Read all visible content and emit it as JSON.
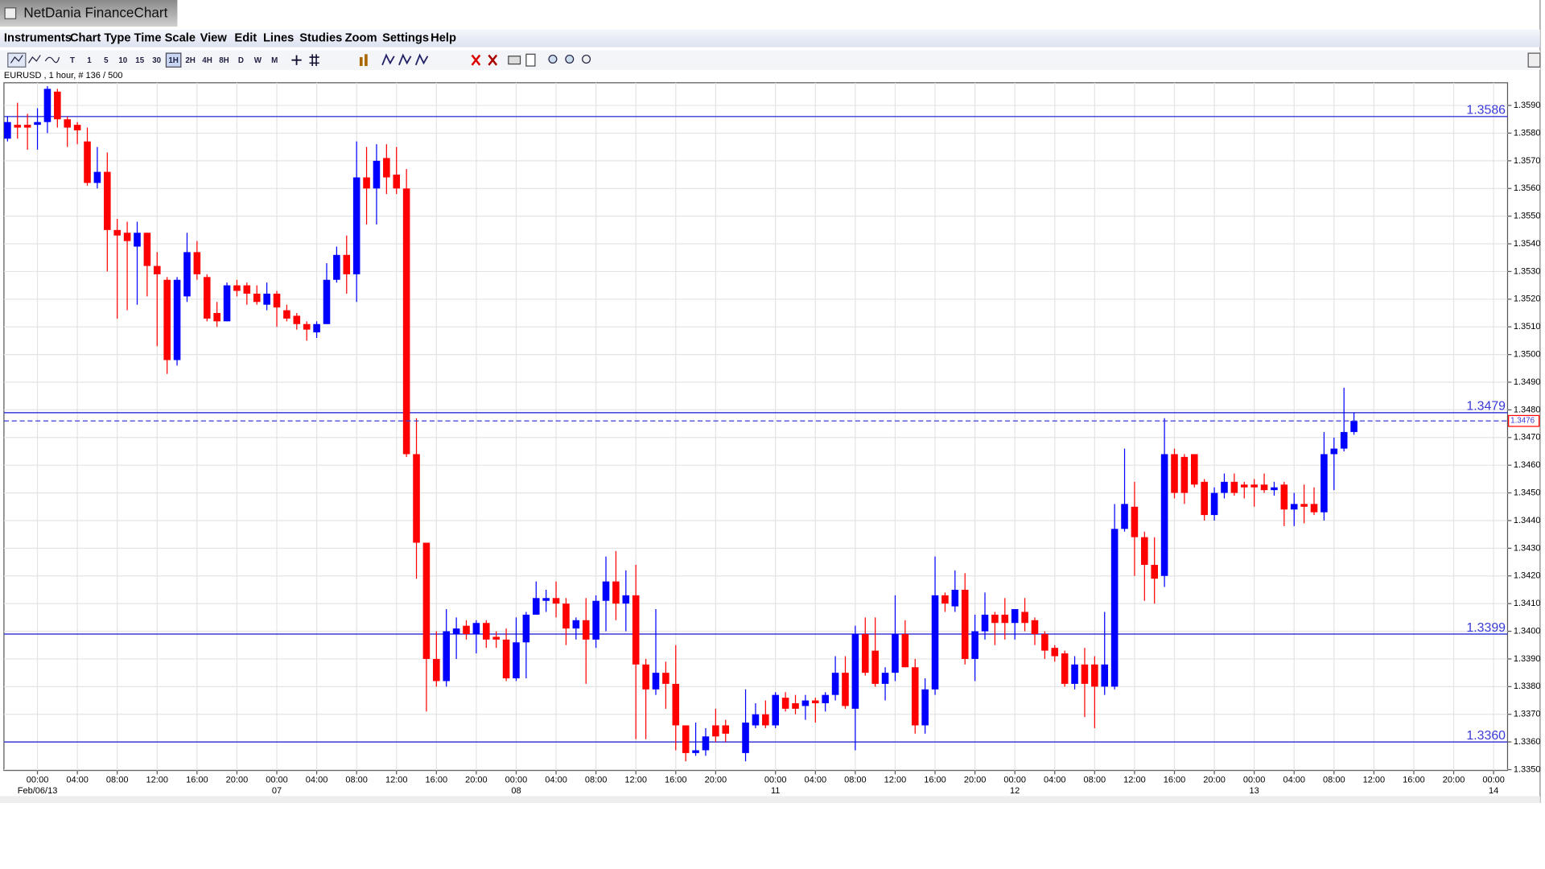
{
  "window_title": "NetDania FinanceChart",
  "menu": [
    "Instruments",
    "Chart Type",
    "Time Scale",
    "View",
    "Edit",
    "Lines",
    "Studies",
    "Zoom",
    "Settings",
    "Help"
  ],
  "toolbar_timeframes": [
    "T",
    "1",
    "5",
    "10",
    "15",
    "30",
    "1H",
    "2H",
    "4H",
    "8H",
    "D",
    "W",
    "M"
  ],
  "active_timeframe": "1H",
  "chart_data": {
    "type": "candlestick",
    "title": "EURUSD , 1 hour, # 136 / 500",
    "up_color": "#0000ff",
    "down_color": "#ff0000",
    "level_color": "#3a3ad8",
    "grid": true,
    "xlim": [
      -3.36,
      147.4
    ],
    "ylim": [
      1.33497,
      1.35982
    ],
    "xticks": [
      {
        "value": 0,
        "label": "00:00"
      },
      {
        "value": 4,
        "label": "04:00"
      },
      {
        "value": 8,
        "label": "08:00"
      },
      {
        "value": 12,
        "label": "12:00"
      },
      {
        "value": 16,
        "label": "16:00"
      },
      {
        "value": 20,
        "label": "20:00"
      },
      {
        "value": 24,
        "label": "00:00"
      },
      {
        "value": 28,
        "label": "04:00"
      },
      {
        "value": 32,
        "label": "08:00"
      },
      {
        "value": 36,
        "label": "12:00"
      },
      {
        "value": 40,
        "label": "16:00"
      },
      {
        "value": 44,
        "label": "20:00"
      },
      {
        "value": 48,
        "label": "00:00"
      },
      {
        "value": 52,
        "label": "04:00"
      },
      {
        "value": 56,
        "label": "08:00"
      },
      {
        "value": 60,
        "label": "12:00"
      },
      {
        "value": 64,
        "label": "16:00"
      },
      {
        "value": 68,
        "label": "20:00"
      },
      {
        "value": 74,
        "label": "00:00"
      },
      {
        "value": 78,
        "label": "04:00"
      },
      {
        "value": 82,
        "label": "08:00"
      },
      {
        "value": 86,
        "label": "12:00"
      },
      {
        "value": 90,
        "label": "16:00"
      },
      {
        "value": 94,
        "label": "20:00"
      },
      {
        "value": 98,
        "label": "00:00"
      },
      {
        "value": 102,
        "label": "04:00"
      },
      {
        "value": 106,
        "label": "08:00"
      },
      {
        "value": 110,
        "label": "12:00"
      },
      {
        "value": 114,
        "label": "16:00"
      },
      {
        "value": 118,
        "label": "20:00"
      },
      {
        "value": 122,
        "label": "00:00"
      },
      {
        "value": 126,
        "label": "04:00"
      },
      {
        "value": 130,
        "label": "08:00"
      },
      {
        "value": 134,
        "label": "12:00"
      },
      {
        "value": 138,
        "label": "16:00"
      },
      {
        "value": 142,
        "label": "20:00"
      },
      {
        "value": 146,
        "label": "00:00"
      }
    ],
    "date_labels": [
      {
        "value": 0,
        "label": "Feb/06/13"
      },
      {
        "value": 24,
        "label": "07"
      },
      {
        "value": 48,
        "label": "08"
      },
      {
        "value": 74,
        "label": "11"
      },
      {
        "value": 98,
        "label": "12"
      },
      {
        "value": 122,
        "label": "13"
      },
      {
        "value": 146,
        "label": "14"
      }
    ],
    "yticks": [
      {
        "value": 1.335,
        "label": "1.3350"
      },
      {
        "value": 1.336,
        "label": "1.3360"
      },
      {
        "value": 1.337,
        "label": "1.3370"
      },
      {
        "value": 1.338,
        "label": "1.3380"
      },
      {
        "value": 1.339,
        "label": "1.3390"
      },
      {
        "value": 1.34,
        "label": "1.3400"
      },
      {
        "value": 1.341,
        "label": "1.3410"
      },
      {
        "value": 1.342,
        "label": "1.3420"
      },
      {
        "value": 1.343,
        "label": "1.3430"
      },
      {
        "value": 1.344,
        "label": "1.3440"
      },
      {
        "value": 1.345,
        "label": "1.3450"
      },
      {
        "value": 1.346,
        "label": "1.3460"
      },
      {
        "value": 1.347,
        "label": "1.3470"
      },
      {
        "value": 1.348,
        "label": "1.3480"
      },
      {
        "value": 1.349,
        "label": "1.3490"
      },
      {
        "value": 1.35,
        "label": "1.3500"
      },
      {
        "value": 1.351,
        "label": "1.3510"
      },
      {
        "value": 1.352,
        "label": "1.3520"
      },
      {
        "value": 1.353,
        "label": "1.3530"
      },
      {
        "value": 1.354,
        "label": "1.3540"
      },
      {
        "value": 1.355,
        "label": "1.3550"
      },
      {
        "value": 1.356,
        "label": "1.3560"
      },
      {
        "value": 1.357,
        "label": "1.3570"
      },
      {
        "value": 1.358,
        "label": "1.3580"
      },
      {
        "value": 1.359,
        "label": "1.3590"
      }
    ],
    "levels": [
      1.3586,
      1.3479,
      1.3399,
      {
        "value": 1.336,
        "label": "1.3360"
      }
    ],
    "last": 1.3476,
    "x": [
      -3,
      -2,
      -1,
      0,
      1,
      2,
      3,
      4,
      5,
      6,
      7,
      8,
      9,
      10,
      11,
      12,
      13,
      14,
      15,
      16,
      17,
      18,
      19,
      20,
      21,
      22,
      23,
      24,
      25,
      26,
      27,
      28,
      29,
      30,
      31,
      32,
      33,
      34,
      35,
      36,
      37,
      38,
      39,
      40,
      41,
      42,
      43,
      44,
      45,
      46,
      47,
      48,
      49,
      50,
      51,
      52,
      53,
      54,
      55,
      56,
      57,
      58,
      59,
      60,
      61,
      62,
      63,
      64,
      65,
      66,
      67,
      68,
      69,
      71,
      72,
      73,
      74,
      75,
      76,
      77,
      78,
      79,
      80,
      81,
      82,
      83,
      84,
      85,
      86,
      87,
      88,
      89,
      90,
      91,
      92,
      93,
      94,
      95,
      96,
      97,
      98,
      99,
      100,
      101,
      102,
      103,
      104,
      105,
      106,
      107,
      108,
      109,
      110,
      111,
      112,
      113,
      114,
      115,
      116,
      117,
      118,
      119,
      120,
      121,
      122,
      123,
      124,
      125,
      126,
      127,
      128,
      129,
      130,
      131,
      132
    ],
    "open": [
      1.3578,
      1.3583,
      1.3583,
      1.3583,
      1.3584,
      1.3595,
      1.3585,
      1.3583,
      1.3577,
      1.3562,
      1.3566,
      1.3545,
      1.3544,
      1.3539,
      1.3544,
      1.3532,
      1.3527,
      1.3498,
      1.3521,
      1.3537,
      1.3528,
      1.3515,
      1.3512,
      1.3525,
      1.3525,
      1.3522,
      1.3518,
      1.3522,
      1.3516,
      1.3514,
      1.3511,
      1.3508,
      1.3511,
      1.3527,
      1.3536,
      1.3529,
      1.3564,
      1.356,
      1.3571,
      1.3565,
      1.356,
      1.3464,
      1.3432,
      1.339,
      1.3382,
      1.3399,
      1.3402,
      1.3399,
      1.3403,
      1.3398,
      1.3397,
      1.3383,
      1.3396,
      1.3406,
      1.3411,
      1.3412,
      1.341,
      1.3401,
      1.3404,
      1.3397,
      1.3411,
      1.3418,
      1.341,
      1.3413,
      1.3388,
      1.3379,
      1.3385,
      1.3381,
      1.3366,
      1.3356,
      1.3357,
      1.3366,
      1.3366,
      1.3356,
      1.3366,
      1.337,
      1.3366,
      1.3376,
      1.3374,
      1.3373,
      1.3375,
      1.3374,
      1.3377,
      1.3385,
      1.3372,
      1.3399,
      1.3393,
      1.3381,
      1.3385,
      1.3399,
      1.3387,
      1.3366,
      1.3379,
      1.3413,
      1.3409,
      1.3415,
      1.339,
      1.34,
      1.3406,
      1.3406,
      1.3403,
      1.3407,
      1.3404,
      1.3399,
      1.3394,
      1.3392,
      1.3381,
      1.3388,
      1.3388,
      1.338,
      1.338,
      1.3437,
      1.3445,
      1.3434,
      1.3424,
      1.342,
      1.3464,
      1.3463,
      1.3464,
      1.3454,
      1.3442,
      1.345,
      1.3454,
      1.3453,
      1.3453,
      1.3453,
      1.3451,
      1.3453,
      1.3444,
      1.3446,
      1.3446,
      1.3443,
      1.3464,
      1.3466,
      1.3472
    ],
    "high": [
      1.3586,
      1.3591,
      1.3587,
      1.3589,
      1.3597,
      1.3596,
      1.3586,
      1.3584,
      1.3582,
      1.3575,
      1.3573,
      1.3549,
      1.3548,
      1.3548,
      1.3544,
      1.3537,
      1.3528,
      1.3528,
      1.3544,
      1.3541,
      1.3529,
      1.3519,
      1.3526,
      1.3527,
      1.3526,
      1.3525,
      1.3526,
      1.3523,
      1.3518,
      1.3515,
      1.3512,
      1.3512,
      1.3533,
      1.3539,
      1.3543,
      1.3577,
      1.3575,
      1.3576,
      1.3576,
      1.3575,
      1.3567,
      1.3477,
      1.3432,
      1.34,
      1.3408,
      1.3405,
      1.3404,
      1.3404,
      1.3404,
      1.34,
      1.3401,
      1.3405,
      1.3407,
      1.3418,
      1.3415,
      1.3418,
      1.3412,
      1.3405,
      1.3412,
      1.3413,
      1.3427,
      1.3429,
      1.3422,
      1.3424,
      1.339,
      1.3408,
      1.3389,
      1.3395,
      1.3366,
      1.3367,
      1.3365,
      1.3372,
      1.3368,
      1.3379,
      1.3374,
      1.3375,
      1.3378,
      1.3378,
      1.3377,
      1.3377,
      1.3376,
      1.3378,
      1.3391,
      1.3391,
      1.3402,
      1.3405,
      1.3405,
      1.3387,
      1.3413,
      1.3404,
      1.339,
      1.3383,
      1.3427,
      1.3414,
      1.3422,
      1.3421,
      1.3406,
      1.3414,
      1.3407,
      1.3412,
      1.3408,
      1.3412,
      1.3405,
      1.34,
      1.3395,
      1.3393,
      1.3391,
      1.3394,
      1.3391,
      1.3407,
      1.3446,
      1.3466,
      1.3454,
      1.3436,
      1.3434,
      1.3477,
      1.3466,
      1.3464,
      1.3464,
      1.3455,
      1.3452,
      1.3457,
      1.3457,
      1.3454,
      1.3455,
      1.3457,
      1.3454,
      1.3454,
      1.345,
      1.3453,
      1.3452,
      1.3472,
      1.347,
      1.3488,
      1.3479
    ],
    "low": [
      1.3577,
      1.3578,
      1.3574,
      1.3574,
      1.358,
      1.3582,
      1.3575,
      1.3576,
      1.3561,
      1.356,
      1.353,
      1.3513,
      1.3516,
      1.3518,
      1.3521,
      1.3503,
      1.3493,
      1.3496,
      1.3519,
      1.3527,
      1.3512,
      1.351,
      1.3512,
      1.3521,
      1.3518,
      1.3518,
      1.3516,
      1.351,
      1.3512,
      1.3509,
      1.3505,
      1.3506,
      1.3511,
      1.3526,
      1.3522,
      1.3519,
      1.3547,
      1.3547,
      1.3558,
      1.3558,
      1.3463,
      1.3419,
      1.3371,
      1.338,
      1.338,
      1.339,
      1.3397,
      1.3392,
      1.3394,
      1.3394,
      1.3382,
      1.3382,
      1.3383,
      1.3406,
      1.3407,
      1.3405,
      1.3395,
      1.3397,
      1.3381,
      1.3394,
      1.34,
      1.3404,
      1.34,
      1.3361,
      1.3361,
      1.3377,
      1.3372,
      1.3357,
      1.3353,
      1.3355,
      1.3355,
      1.336,
      1.336,
      1.3353,
      1.3365,
      1.3365,
      1.3365,
      1.3371,
      1.337,
      1.3368,
      1.3367,
      1.3371,
      1.3375,
      1.3372,
      1.3357,
      1.3384,
      1.338,
      1.3375,
      1.3382,
      1.3387,
      1.3363,
      1.3363,
      1.3377,
      1.3407,
      1.3407,
      1.3388,
      1.3382,
      1.3397,
      1.3395,
      1.3397,
      1.3397,
      1.34,
      1.3395,
      1.339,
      1.3389,
      1.338,
      1.3379,
      1.3369,
      1.3365,
      1.3377,
      1.3379,
      1.3436,
      1.342,
      1.3411,
      1.341,
      1.3416,
      1.3448,
      1.3446,
      1.3452,
      1.344,
      1.344,
      1.3448,
      1.3449,
      1.3448,
      1.3445,
      1.345,
      1.3449,
      1.3438,
      1.3438,
      1.3439,
      1.3442,
      1.344,
      1.3451,
      1.3465,
      1.3471
    ],
    "close": [
      1.3584,
      1.3582,
      1.3582,
      1.3584,
      1.3596,
      1.3585,
      1.3582,
      1.3581,
      1.3562,
      1.3566,
      1.3545,
      1.3543,
      1.3541,
      1.3544,
      1.3532,
      1.3529,
      1.3498,
      1.3527,
      1.3537,
      1.3529,
      1.3513,
      1.3512,
      1.3525,
      1.3523,
      1.3522,
      1.3519,
      1.3522,
      1.3517,
      1.3513,
      1.3511,
      1.3509,
      1.3511,
      1.3527,
      1.3536,
      1.3529,
      1.3564,
      1.356,
      1.357,
      1.3564,
      1.356,
      1.3464,
      1.3432,
      1.339,
      1.3382,
      1.34,
      1.3401,
      1.3399,
      1.3403,
      1.3397,
      1.3397,
      1.3383,
      1.3396,
      1.3406,
      1.3412,
      1.3412,
      1.341,
      1.3401,
      1.3404,
      1.3397,
      1.3411,
      1.3418,
      1.341,
      1.3413,
      1.3388,
      1.3379,
      1.3385,
      1.3381,
      1.3366,
      1.3356,
      1.3357,
      1.3362,
      1.3362,
      1.3363,
      1.3367,
      1.337,
      1.3366,
      1.3377,
      1.3372,
      1.3372,
      1.3375,
      1.3374,
      1.3377,
      1.3385,
      1.3373,
      1.3399,
      1.3385,
      1.3381,
      1.3385,
      1.3399,
      1.3387,
      1.3366,
      1.3379,
      1.3413,
      1.341,
      1.3415,
      1.339,
      1.34,
      1.3406,
      1.3403,
      1.3403,
      1.3408,
      1.3403,
      1.3399,
      1.3393,
      1.3391,
      1.3381,
      1.3388,
      1.3381,
      1.338,
      1.3388,
      1.3437,
      1.3446,
      1.3434,
      1.3424,
      1.3419,
      1.3464,
      1.345,
      1.345,
      1.3453,
      1.3442,
      1.345,
      1.3454,
      1.345,
      1.3452,
      1.3452,
      1.3451,
      1.3452,
      1.3444,
      1.3446,
      1.3445,
      1.3443,
      1.3464,
      1.3466,
      1.3472,
      1.3476
    ]
  }
}
